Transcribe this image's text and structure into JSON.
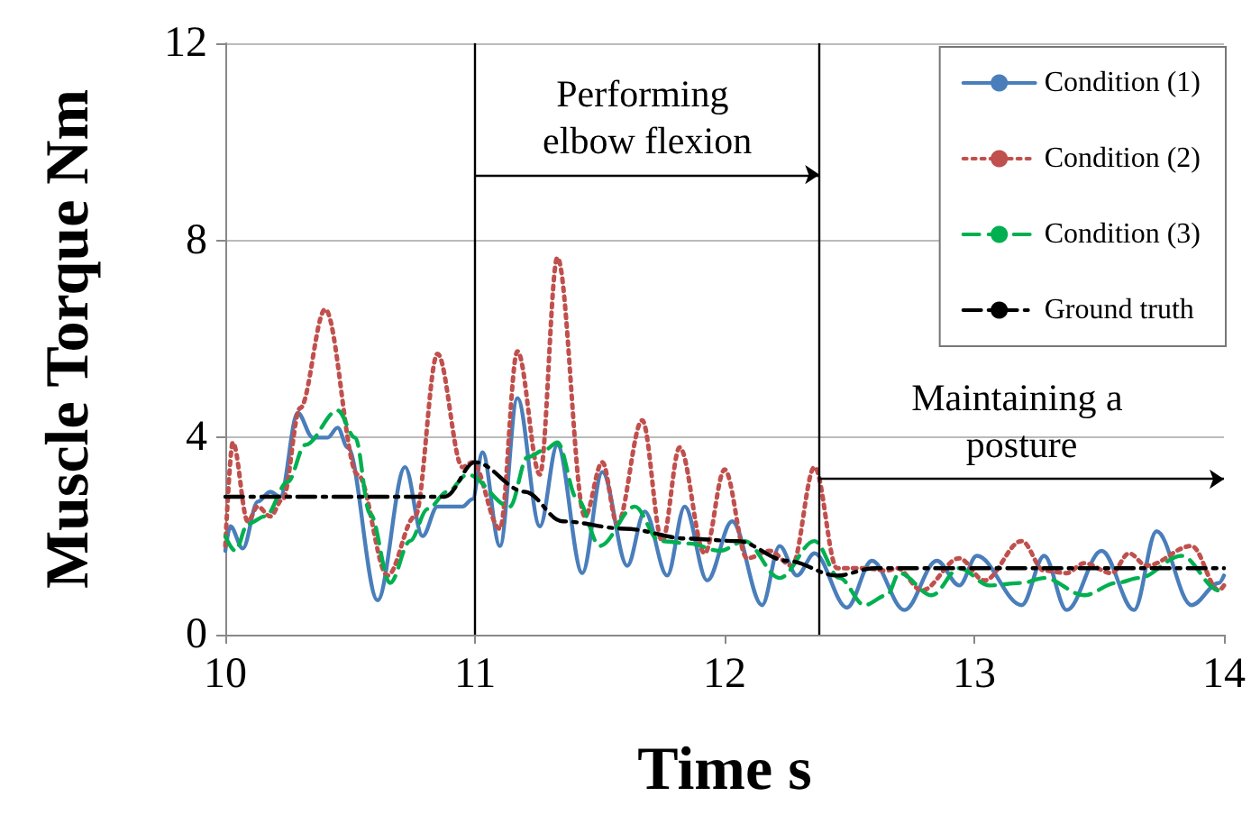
{
  "chart_data": {
    "type": "line",
    "xlabel": "Time s",
    "ylabel": "Muscle Torque Nm",
    "xlim": [
      10,
      14
    ],
    "xticks": [
      10,
      11,
      12,
      13,
      14
    ],
    "ylim": [
      0,
      12
    ],
    "yticks": [
      0,
      4,
      8,
      12
    ],
    "grid": "y",
    "legend": "top right",
    "marker": "none",
    "series": [
      {
        "name": "Condition (1)",
        "color": "#4a7ebb",
        "line_style": "solid",
        "x": [
          10.0,
          10.02,
          10.07,
          10.13,
          10.18,
          10.22,
          10.29,
          10.35,
          10.41,
          10.45,
          10.49,
          10.61,
          10.72,
          10.79,
          10.85,
          10.95,
          10.99,
          11.03,
          11.1,
          11.17,
          11.26,
          11.33,
          11.43,
          11.51,
          11.61,
          11.68,
          11.77,
          11.84,
          11.93,
          12.03,
          12.15,
          12.22,
          12.29,
          12.36,
          12.49,
          12.59,
          12.72,
          12.85,
          12.94,
          13.01,
          13.19,
          13.28,
          13.37,
          13.51,
          13.64,
          13.73,
          13.87,
          13.98,
          14.0
        ],
        "values": [
          1.7,
          2.2,
          1.75,
          2.7,
          2.9,
          2.8,
          4.5,
          4.0,
          4.0,
          4.2,
          3.8,
          0.7,
          3.4,
          2.0,
          2.6,
          2.6,
          2.75,
          3.7,
          1.8,
          4.8,
          2.2,
          3.85,
          1.25,
          3.3,
          1.4,
          2.5,
          1.2,
          2.6,
          1.1,
          2.3,
          0.6,
          1.8,
          1.2,
          1.65,
          0.55,
          1.5,
          0.5,
          1.5,
          1.0,
          1.6,
          0.6,
          1.6,
          0.5,
          1.7,
          0.5,
          2.1,
          0.6,
          1.05,
          1.2
        ]
      },
      {
        "name": "Condition (2)",
        "color": "#c0504d",
        "line_style": "dotted",
        "x": [
          10.0,
          10.03,
          10.09,
          10.13,
          10.18,
          10.23,
          10.3,
          10.4,
          10.53,
          10.65,
          10.76,
          10.85,
          10.95,
          10.99,
          11.1,
          11.17,
          11.26,
          11.33,
          11.44,
          11.51,
          11.57,
          11.67,
          11.75,
          11.82,
          11.92,
          12.0,
          12.09,
          12.18,
          12.27,
          12.36,
          12.45,
          12.56,
          12.65,
          12.69,
          12.79,
          12.94,
          13.04,
          13.19,
          13.28,
          13.37,
          13.44,
          13.55,
          13.62,
          13.69,
          13.87,
          13.98,
          14.0
        ],
        "values": [
          1.8,
          3.9,
          2.3,
          2.6,
          2.4,
          2.75,
          4.6,
          6.6,
          3.25,
          1.2,
          2.4,
          5.7,
          3.4,
          3.5,
          2.15,
          5.75,
          3.25,
          7.65,
          2.4,
          3.5,
          2.25,
          4.35,
          1.9,
          3.8,
          1.65,
          3.35,
          1.55,
          1.7,
          1.4,
          3.4,
          1.35,
          1.35,
          1.3,
          1.35,
          0.9,
          1.55,
          1.1,
          1.9,
          1.3,
          1.25,
          1.45,
          1.25,
          1.65,
          1.4,
          1.8,
          0.9,
          1.0
        ]
      },
      {
        "name": "Condition (3)",
        "color": "#00b050",
        "line_style": "dashed",
        "x": [
          10.0,
          10.04,
          10.09,
          10.16,
          10.25,
          10.32,
          10.45,
          10.52,
          10.58,
          10.66,
          10.74,
          10.81,
          10.89,
          10.97,
          11.14,
          11.21,
          11.28,
          11.33,
          11.41,
          11.5,
          11.64,
          11.74,
          11.86,
          11.98,
          12.08,
          12.22,
          12.36,
          12.46,
          12.56,
          12.65,
          12.7,
          12.83,
          12.94,
          13.06,
          13.19,
          13.28,
          13.44,
          13.57,
          13.66,
          13.83,
          13.98,
          14.0
        ],
        "values": [
          2.0,
          1.7,
          2.25,
          2.4,
          3.1,
          3.85,
          4.55,
          4.0,
          2.45,
          1.05,
          1.9,
          2.55,
          2.9,
          3.25,
          2.6,
          3.6,
          3.75,
          3.9,
          2.75,
          1.8,
          2.6,
          1.9,
          1.85,
          1.7,
          1.9,
          1.15,
          1.9,
          1.15,
          0.6,
          0.8,
          1.25,
          0.8,
          1.35,
          1.0,
          1.05,
          1.15,
          0.8,
          1.05,
          1.15,
          1.6,
          0.9,
          1.0
        ]
      },
      {
        "name": "Ground truth",
        "color": "#000000",
        "line_style": "dashdot",
        "x": [
          10.0,
          10.88,
          11.0,
          11.2,
          11.35,
          11.6,
          11.85,
          12.05,
          12.25,
          12.45,
          12.6,
          14.0
        ],
        "values": [
          2.8,
          2.8,
          3.5,
          2.9,
          2.3,
          2.15,
          1.95,
          1.9,
          1.5,
          1.2,
          1.35,
          1.35
        ]
      }
    ],
    "ref_lines": [
      {
        "axis": "x",
        "value": 11.0,
        "color": "#000000"
      },
      {
        "axis": "x",
        "value": 12.38,
        "color": "#000000"
      }
    ],
    "annotations": [
      "Performing elbow flexion",
      "Maintaining a posture"
    ]
  }
}
